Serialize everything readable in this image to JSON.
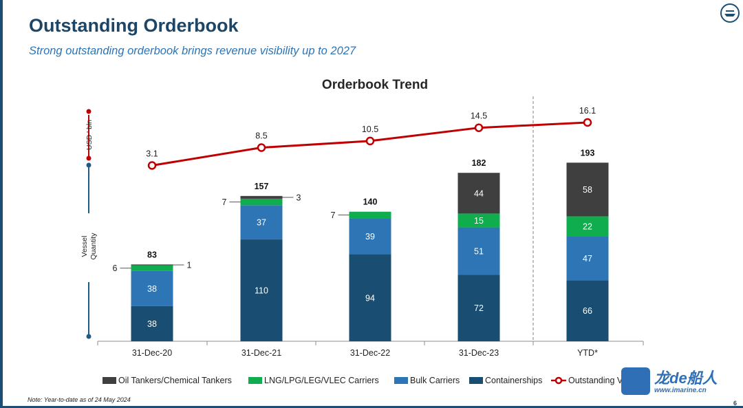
{
  "header": {
    "title": "Outstanding Orderbook",
    "subtitle": "Strong outstanding orderbook brings revenue visibility up to 2027"
  },
  "colors": {
    "containerships": "#1a4d72",
    "bulk": "#2e75b6",
    "lng": "#10ad4e",
    "oil": "#3f3f3f",
    "line": "#c00000",
    "title": "#1c4566",
    "axis_bracket": "#1f5b85"
  },
  "chart_data": {
    "type": "bar",
    "stacked": true,
    "title": "Orderbook Trend",
    "categories": [
      "31-Dec-20",
      "31-Dec-21",
      "31-Dec-22",
      "31-Dec-23",
      "YTD*"
    ],
    "series": [
      {
        "name": "Containerships",
        "values": [
          38,
          110,
          94,
          72,
          66
        ]
      },
      {
        "name": "Bulk Carriers",
        "values": [
          38,
          37,
          39,
          51,
          47
        ]
      },
      {
        "name": "LNG/LPG/LEG/VLEC Carriers",
        "values": [
          6,
          7,
          7,
          15,
          22
        ]
      },
      {
        "name": "Oil Tankers/Chemical Tankers",
        "values": [
          1,
          3,
          0,
          44,
          58
        ]
      }
    ],
    "totals": [
      83,
      157,
      140,
      182,
      193
    ],
    "line_series": {
      "name": "Outstanding Value",
      "values": [
        3.1,
        8.5,
        10.5,
        14.5,
        16.1
      ],
      "axis": "USD ' bln"
    },
    "data_labels": [
      [
        "38",
        "38",
        "6",
        "1"
      ],
      [
        "110",
        "37",
        "7",
        "3"
      ],
      [
        "94",
        "39",
        "7",
        ""
      ],
      [
        "72",
        "51",
        "15",
        "44"
      ],
      [
        "66",
        "47",
        "22",
        "58"
      ]
    ],
    "y_axis_labels": {
      "upper": "USD ' bln",
      "lower_line1": "Vessel",
      "lower_line2": "Quantity"
    },
    "legend": [
      "Oil Tankers/Chemical Tankers",
      "LNG/LPG/LEG/VLEC Carriers",
      "Bulk Carriers",
      "Containerships",
      "Outstanding V"
    ],
    "legend_position": "bottom",
    "divider_before": "YTD*"
  },
  "footer": {
    "note": "Note: Year-to-date as of 24 May 2024",
    "page": "6"
  },
  "watermark": {
    "title": "龙de船人",
    "url": "www.imarine.cn"
  }
}
